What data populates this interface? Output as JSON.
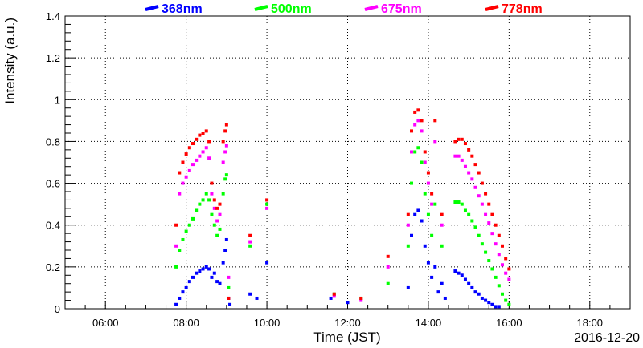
{
  "chart_data": {
    "type": "scatter",
    "title": "",
    "xlabel": "Time (JST)",
    "ylabel": "Intensity (a.u.)",
    "date_label": "2016-12-20",
    "xlim": [
      "05:00",
      "19:00"
    ],
    "ylim": [
      0,
      1.4
    ],
    "x_ticks": [
      "06:00",
      "08:00",
      "10:00",
      "12:00",
      "14:00",
      "16:00",
      "18:00"
    ],
    "y_ticks": [
      "0",
      "0.2",
      "0.4",
      "0.6",
      "0.8",
      "1",
      "1.2",
      "1.4"
    ],
    "grid": true,
    "legend_position": "top",
    "series": [
      {
        "name": "368nm",
        "color": "#0000ff",
        "points": [
          [
            "07:45",
            0.02
          ],
          [
            "07:50",
            0.05
          ],
          [
            "07:55",
            0.08
          ],
          [
            "08:00",
            0.1
          ],
          [
            "08:05",
            0.13
          ],
          [
            "08:10",
            0.15
          ],
          [
            "08:15",
            0.17
          ],
          [
            "08:20",
            0.18
          ],
          [
            "08:25",
            0.19
          ],
          [
            "08:30",
            0.2
          ],
          [
            "08:34",
            0.19
          ],
          [
            "08:38",
            0.15
          ],
          [
            "08:42",
            0.17
          ],
          [
            "08:46",
            0.13
          ],
          [
            "08:50",
            0.12
          ],
          [
            "08:55",
            0.22
          ],
          [
            "08:58",
            0.28
          ],
          [
            "09:00",
            0.33
          ],
          [
            "09:03",
            0.05
          ],
          [
            "09:05",
            0.02
          ],
          [
            "09:35",
            0.07
          ],
          [
            "09:45",
            0.05
          ],
          [
            "10:00",
            0.22
          ],
          [
            "11:35",
            0.05
          ],
          [
            "12:00",
            0.03
          ],
          [
            "13:30",
            0.1
          ],
          [
            "13:35",
            0.35
          ],
          [
            "13:40",
            0.45
          ],
          [
            "13:45",
            0.47
          ],
          [
            "13:50",
            0.42
          ],
          [
            "13:55",
            0.3
          ],
          [
            "14:00",
            0.22
          ],
          [
            "14:05",
            0.15
          ],
          [
            "14:10",
            0.2
          ],
          [
            "14:15",
            0.08
          ],
          [
            "14:20",
            0.12
          ],
          [
            "14:25",
            0.05
          ],
          [
            "14:40",
            0.18
          ],
          [
            "14:45",
            0.17
          ],
          [
            "14:50",
            0.16
          ],
          [
            "14:55",
            0.14
          ],
          [
            "15:00",
            0.12
          ],
          [
            "15:05",
            0.1
          ],
          [
            "15:10",
            0.08
          ],
          [
            "15:15",
            0.07
          ],
          [
            "15:20",
            0.05
          ],
          [
            "15:25",
            0.04
          ],
          [
            "15:30",
            0.03
          ],
          [
            "15:35",
            0.02
          ],
          [
            "15:40",
            0.01
          ],
          [
            "15:45",
            0.01
          ]
        ]
      },
      {
        "name": "500nm",
        "color": "#00ff00",
        "points": [
          [
            "07:45",
            0.2
          ],
          [
            "07:50",
            0.28
          ],
          [
            "07:55",
            0.33
          ],
          [
            "08:00",
            0.37
          ],
          [
            "08:05",
            0.4
          ],
          [
            "08:10",
            0.43
          ],
          [
            "08:15",
            0.47
          ],
          [
            "08:20",
            0.5
          ],
          [
            "08:25",
            0.52
          ],
          [
            "08:30",
            0.55
          ],
          [
            "08:34",
            0.52
          ],
          [
            "08:38",
            0.45
          ],
          [
            "08:42",
            0.4
          ],
          [
            "08:46",
            0.35
          ],
          [
            "08:50",
            0.38
          ],
          [
            "08:55",
            0.55
          ],
          [
            "08:58",
            0.62
          ],
          [
            "09:00",
            0.64
          ],
          [
            "09:03",
            0.1
          ],
          [
            "09:35",
            0.3
          ],
          [
            "10:00",
            0.5
          ],
          [
            "11:40",
            0.07
          ],
          [
            "12:20",
            0.05
          ],
          [
            "13:00",
            0.12
          ],
          [
            "13:30",
            0.3
          ],
          [
            "13:35",
            0.6
          ],
          [
            "13:40",
            0.75
          ],
          [
            "13:45",
            0.77
          ],
          [
            "13:50",
            0.7
          ],
          [
            "13:55",
            0.55
          ],
          [
            "14:00",
            0.45
          ],
          [
            "14:05",
            0.35
          ],
          [
            "14:10",
            0.5
          ],
          [
            "14:20",
            0.3
          ],
          [
            "14:40",
            0.51
          ],
          [
            "14:45",
            0.51
          ],
          [
            "14:50",
            0.5
          ],
          [
            "14:55",
            0.47
          ],
          [
            "15:00",
            0.45
          ],
          [
            "15:05",
            0.42
          ],
          [
            "15:10",
            0.39
          ],
          [
            "15:15",
            0.35
          ],
          [
            "15:20",
            0.31
          ],
          [
            "15:25",
            0.27
          ],
          [
            "15:30",
            0.23
          ],
          [
            "15:35",
            0.19
          ],
          [
            "15:40",
            0.15
          ],
          [
            "15:45",
            0.11
          ],
          [
            "15:50",
            0.07
          ],
          [
            "15:55",
            0.04
          ],
          [
            "16:00",
            0.02
          ]
        ]
      },
      {
        "name": "675nm",
        "color": "#ff00ff",
        "points": [
          [
            "07:45",
            0.3
          ],
          [
            "07:50",
            0.55
          ],
          [
            "07:55",
            0.6
          ],
          [
            "08:00",
            0.63
          ],
          [
            "08:05",
            0.66
          ],
          [
            "08:10",
            0.69
          ],
          [
            "08:15",
            0.71
          ],
          [
            "08:20",
            0.73
          ],
          [
            "08:25",
            0.75
          ],
          [
            "08:30",
            0.77
          ],
          [
            "08:34",
            0.72
          ],
          [
            "08:38",
            0.55
          ],
          [
            "08:42",
            0.48
          ],
          [
            "08:46",
            0.42
          ],
          [
            "08:50",
            0.45
          ],
          [
            "08:55",
            0.7
          ],
          [
            "08:58",
            0.75
          ],
          [
            "09:00",
            0.78
          ],
          [
            "09:03",
            0.15
          ],
          [
            "09:35",
            0.32
          ],
          [
            "10:00",
            0.48
          ],
          [
            "11:40",
            0.06
          ],
          [
            "12:20",
            0.04
          ],
          [
            "13:00",
            0.2
          ],
          [
            "13:30",
            0.4
          ],
          [
            "13:35",
            0.75
          ],
          [
            "13:40",
            0.88
          ],
          [
            "13:45",
            0.9
          ],
          [
            "13:50",
            0.85
          ],
          [
            "13:55",
            0.7
          ],
          [
            "14:00",
            0.6
          ],
          [
            "14:05",
            0.5
          ],
          [
            "14:10",
            0.8
          ],
          [
            "14:20",
            0.4
          ],
          [
            "14:40",
            0.73
          ],
          [
            "14:45",
            0.73
          ],
          [
            "14:50",
            0.71
          ],
          [
            "14:55",
            0.68
          ],
          [
            "15:00",
            0.65
          ],
          [
            "15:05",
            0.62
          ],
          [
            "15:10",
            0.58
          ],
          [
            "15:15",
            0.54
          ],
          [
            "15:20",
            0.5
          ],
          [
            "15:25",
            0.45
          ],
          [
            "15:30",
            0.41
          ],
          [
            "15:35",
            0.36
          ],
          [
            "15:40",
            0.31
          ],
          [
            "15:45",
            0.26
          ],
          [
            "15:50",
            0.21
          ],
          [
            "15:55",
            0.17
          ],
          [
            "16:00",
            0.14
          ]
        ]
      },
      {
        "name": "778nm",
        "color": "#ff0000",
        "points": [
          [
            "07:45",
            0.4
          ],
          [
            "07:50",
            0.65
          ],
          [
            "07:55",
            0.7
          ],
          [
            "08:00",
            0.74
          ],
          [
            "08:05",
            0.77
          ],
          [
            "08:10",
            0.79
          ],
          [
            "08:15",
            0.81
          ],
          [
            "08:20",
            0.83
          ],
          [
            "08:25",
            0.84
          ],
          [
            "08:30",
            0.85
          ],
          [
            "08:34",
            0.8
          ],
          [
            "08:38",
            0.6
          ],
          [
            "08:42",
            0.52
          ],
          [
            "08:46",
            0.48
          ],
          [
            "08:50",
            0.5
          ],
          [
            "08:55",
            0.8
          ],
          [
            "08:58",
            0.85
          ],
          [
            "09:00",
            0.88
          ],
          [
            "09:03",
            0.05
          ],
          [
            "09:35",
            0.35
          ],
          [
            "10:00",
            0.52
          ],
          [
            "11:40",
            0.07
          ],
          [
            "12:20",
            0.05
          ],
          [
            "13:00",
            0.25
          ],
          [
            "13:30",
            0.45
          ],
          [
            "13:35",
            0.85
          ],
          [
            "13:40",
            0.94
          ],
          [
            "13:45",
            0.95
          ],
          [
            "13:50",
            0.9
          ],
          [
            "13:55",
            0.75
          ],
          [
            "14:00",
            0.65
          ],
          [
            "14:05",
            0.55
          ],
          [
            "14:10",
            0.9
          ],
          [
            "14:20",
            0.45
          ],
          [
            "14:40",
            0.8
          ],
          [
            "14:45",
            0.81
          ],
          [
            "14:50",
            0.81
          ],
          [
            "14:55",
            0.79
          ],
          [
            "15:00",
            0.76
          ],
          [
            "15:05",
            0.73
          ],
          [
            "15:10",
            0.69
          ],
          [
            "15:15",
            0.65
          ],
          [
            "15:20",
            0.6
          ],
          [
            "15:25",
            0.55
          ],
          [
            "15:30",
            0.5
          ],
          [
            "15:35",
            0.45
          ],
          [
            "15:40",
            0.4
          ],
          [
            "15:45",
            0.35
          ],
          [
            "15:50",
            0.3
          ],
          [
            "15:55",
            0.24
          ],
          [
            "16:00",
            0.19
          ]
        ]
      }
    ]
  }
}
